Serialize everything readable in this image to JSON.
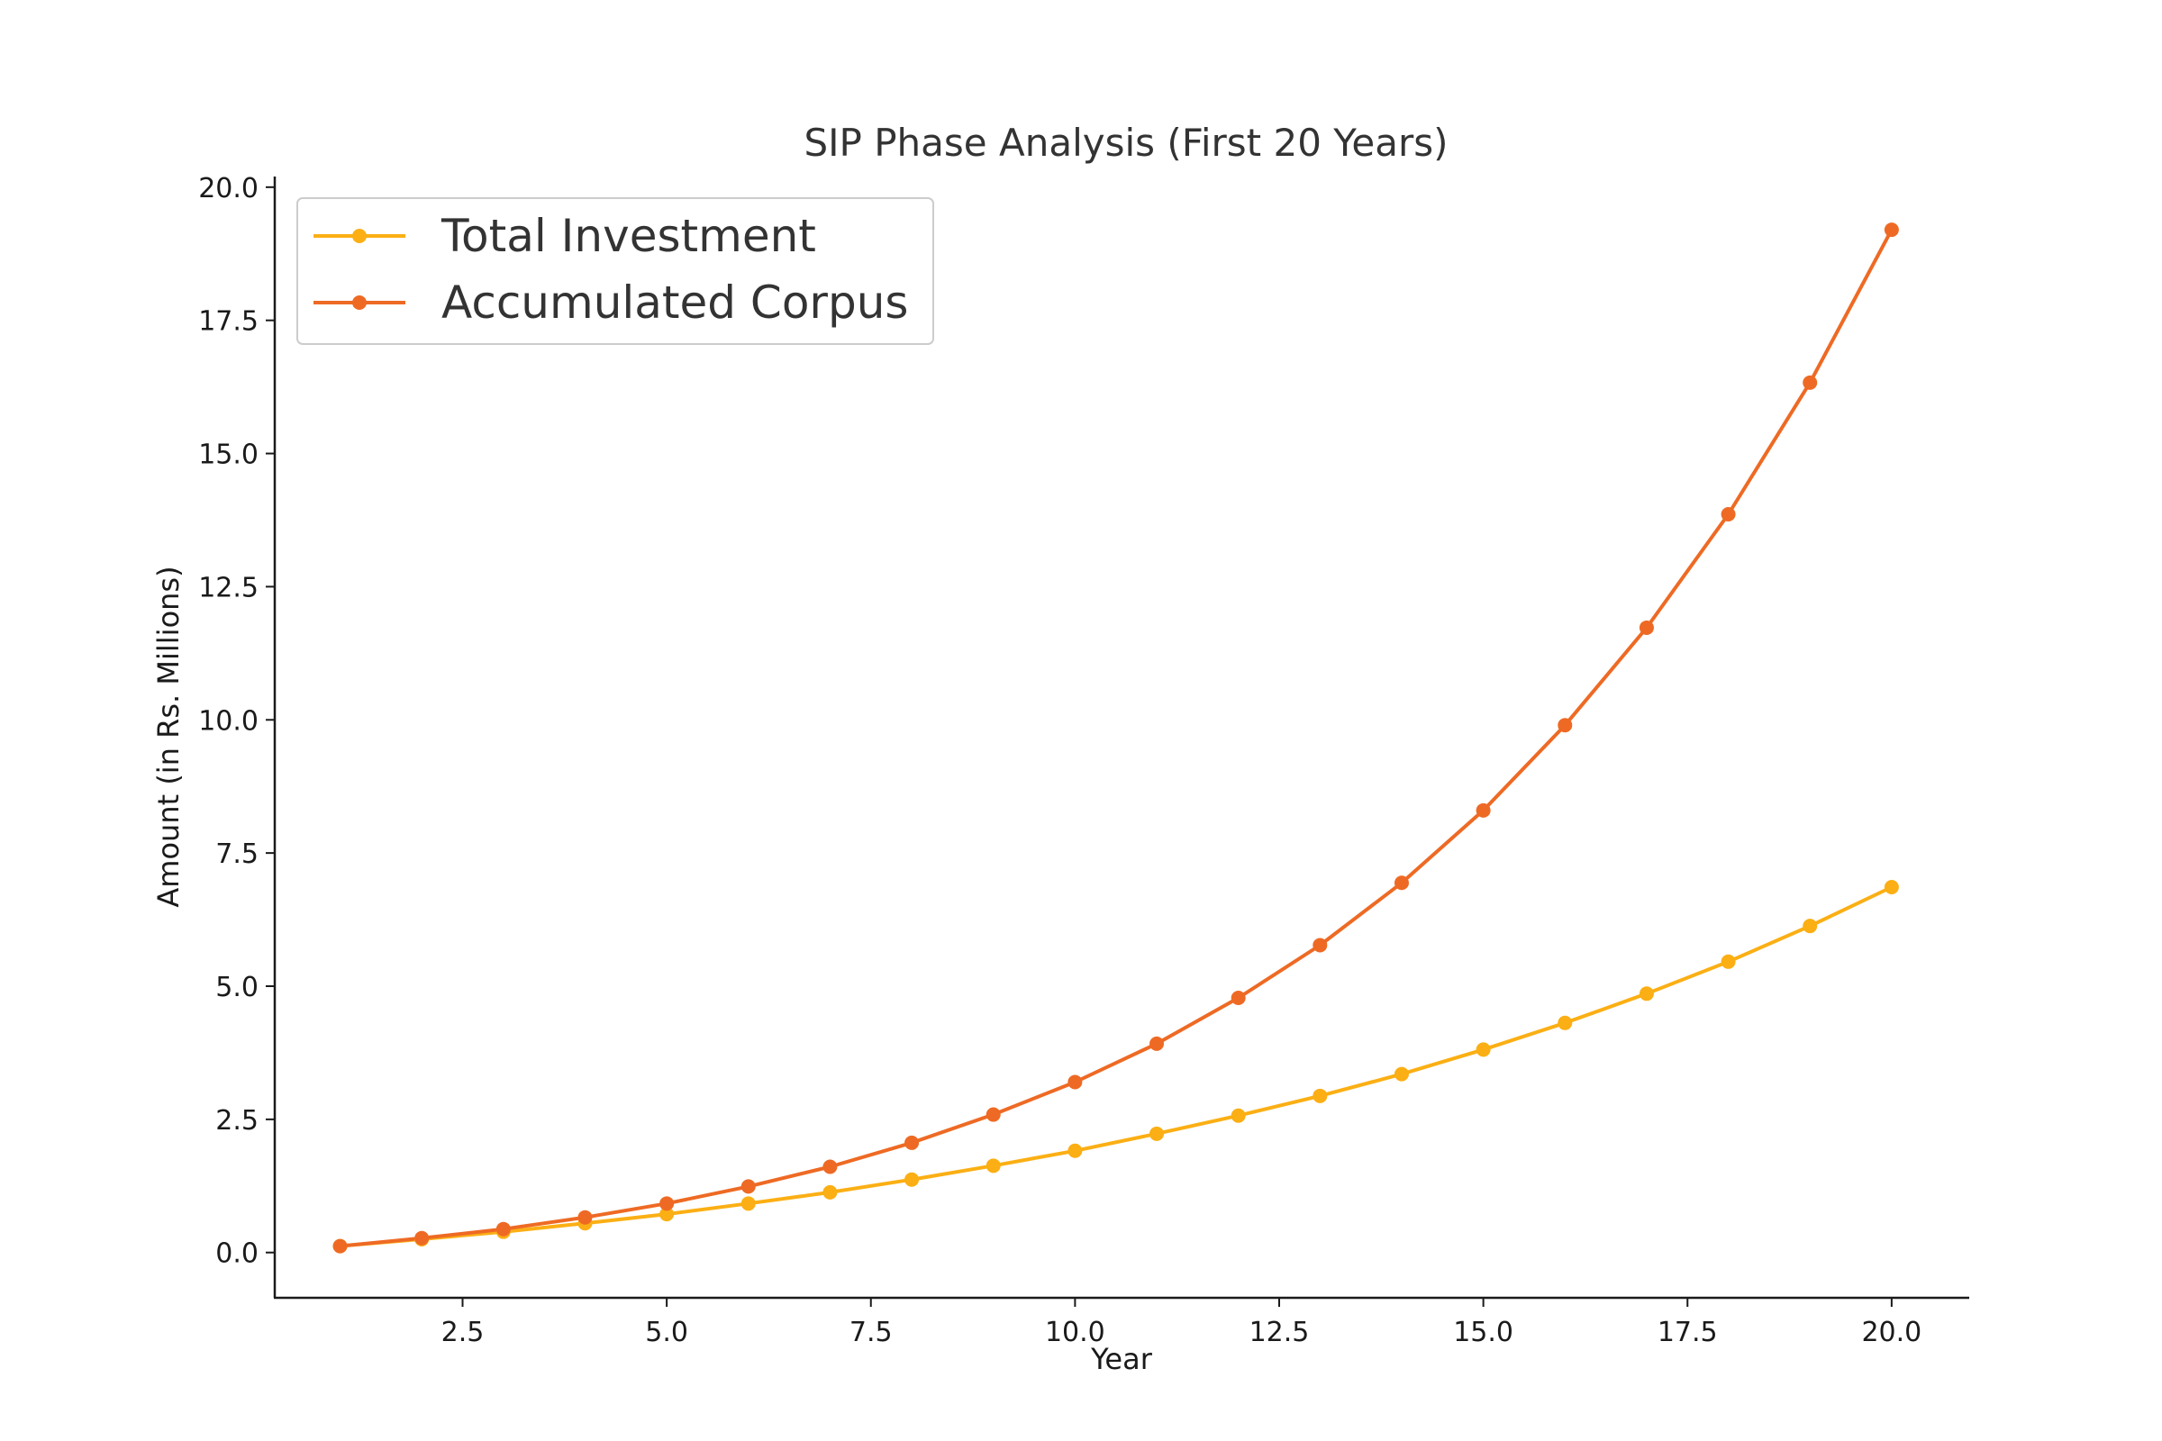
{
  "chart_data": {
    "type": "line",
    "title": "SIP Phase Analysis (First 20 Years)",
    "xlabel": "Year",
    "ylabel": "Amount (in Rs. Millions)",
    "xlim": [
      0.2,
      20.95
    ],
    "ylim": [
      -0.85,
      20.2
    ],
    "xticks": [
      2.5,
      5.0,
      7.5,
      10.0,
      12.5,
      15.0,
      17.5,
      20.0
    ],
    "xtick_labels": [
      "2.5",
      "5.0",
      "7.5",
      "10.0",
      "12.5",
      "15.0",
      "17.5",
      "20.0"
    ],
    "yticks": [
      0.0,
      2.5,
      5.0,
      7.5,
      10.0,
      12.5,
      15.0,
      17.5,
      20.0
    ],
    "ytick_labels": [
      "0.0",
      "2.5",
      "5.0",
      "7.5",
      "10.0",
      "12.5",
      "15.0",
      "17.5",
      "20.0"
    ],
    "grid": false,
    "legend_position": "top-left",
    "x": [
      1,
      2,
      3,
      4,
      5,
      6,
      7,
      8,
      9,
      10,
      11,
      12,
      13,
      14,
      15,
      16,
      17,
      18,
      19,
      20
    ],
    "series": [
      {
        "name": "Total Investment",
        "color": "#FBAF14",
        "marker": "circle",
        "values": [
          0.12,
          0.25,
          0.39,
          0.55,
          0.72,
          0.92,
          1.13,
          1.37,
          1.63,
          1.91,
          2.23,
          2.57,
          2.94,
          3.35,
          3.81,
          4.31,
          4.86,
          5.46,
          6.13,
          6.86
        ]
      },
      {
        "name": "Accumulated Corpus",
        "color": "#EE6A24",
        "marker": "circle",
        "values": [
          0.12,
          0.27,
          0.44,
          0.66,
          0.92,
          1.24,
          1.61,
          2.06,
          2.59,
          3.2,
          3.92,
          4.78,
          5.77,
          6.94,
          8.3,
          9.9,
          11.73,
          13.86,
          16.33,
          19.2
        ]
      }
    ]
  }
}
